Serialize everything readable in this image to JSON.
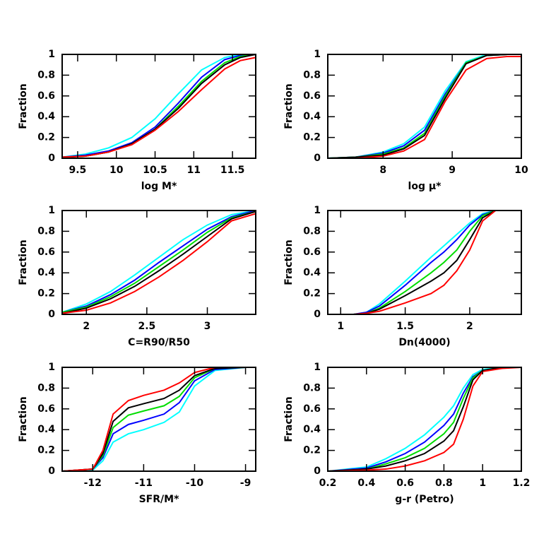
{
  "chart_data": [
    {
      "type": "line",
      "xlabel": "log M*",
      "ylabel": "Fraction",
      "xlim": [
        9.3,
        11.8
      ],
      "xticks": [
        9.5,
        10,
        10.5,
        11,
        11.5
      ],
      "ylim": [
        0,
        1
      ],
      "yticks": [
        0,
        0.2,
        0.4,
        0.6,
        0.8,
        1
      ],
      "x": [
        9.3,
        9.6,
        9.9,
        10.2,
        10.5,
        10.8,
        11.1,
        11.4,
        11.6,
        11.8
      ],
      "series": [
        {
          "color": "#00ffff",
          "values": [
            0.01,
            0.04,
            0.1,
            0.2,
            0.38,
            0.62,
            0.85,
            0.97,
            1,
            1
          ]
        },
        {
          "color": "#0000ff",
          "values": [
            0.01,
            0.03,
            0.07,
            0.15,
            0.3,
            0.53,
            0.78,
            0.95,
            0.99,
            1
          ]
        },
        {
          "color": "#00dd00",
          "values": [
            0.01,
            0.02,
            0.06,
            0.14,
            0.28,
            0.5,
            0.74,
            0.92,
            0.98,
            1
          ]
        },
        {
          "color": "#000000",
          "values": [
            0.01,
            0.02,
            0.06,
            0.14,
            0.28,
            0.48,
            0.72,
            0.9,
            0.97,
            1
          ]
        },
        {
          "color": "#ff0000",
          "values": [
            0.01,
            0.02,
            0.06,
            0.13,
            0.27,
            0.45,
            0.66,
            0.86,
            0.94,
            0.97
          ]
        }
      ]
    },
    {
      "type": "line",
      "xlabel": "log μ*",
      "ylabel": "Fraction",
      "xlim": [
        7.2,
        10
      ],
      "xticks": [
        8,
        9,
        10
      ],
      "ylim": [
        0,
        1
      ],
      "yticks": [
        0,
        0.2,
        0.4,
        0.6,
        0.8,
        1
      ],
      "x": [
        7.2,
        7.6,
        8,
        8.3,
        8.6,
        8.9,
        9.2,
        9.5,
        9.8,
        10
      ],
      "series": [
        {
          "color": "#00ffff",
          "values": [
            0,
            0.01,
            0.06,
            0.14,
            0.3,
            0.65,
            0.93,
            1,
            1,
            1
          ]
        },
        {
          "color": "#0000ff",
          "values": [
            0,
            0.01,
            0.05,
            0.12,
            0.27,
            0.62,
            0.92,
            0.99,
            1,
            1
          ]
        },
        {
          "color": "#00dd00",
          "values": [
            0,
            0.01,
            0.04,
            0.1,
            0.24,
            0.6,
            0.92,
            0.99,
            1,
            1
          ]
        },
        {
          "color": "#000000",
          "values": [
            0,
            0.01,
            0.03,
            0.09,
            0.22,
            0.58,
            0.91,
            0.99,
            1,
            1
          ]
        },
        {
          "color": "#ff0000",
          "values": [
            0,
            0,
            0.02,
            0.07,
            0.18,
            0.55,
            0.85,
            0.96,
            0.98,
            0.98
          ]
        }
      ]
    },
    {
      "type": "line",
      "xlabel": "C=R90/R50",
      "ylabel": "Fraction",
      "xlim": [
        1.8,
        3.4
      ],
      "xticks": [
        2,
        2.5,
        3
      ],
      "ylim": [
        0,
        1
      ],
      "yticks": [
        0,
        0.2,
        0.4,
        0.6,
        0.8,
        1
      ],
      "x": [
        1.8,
        2,
        2.2,
        2.4,
        2.6,
        2.8,
        3,
        3.2,
        3.4
      ],
      "series": [
        {
          "color": "#00ffff",
          "values": [
            0.02,
            0.1,
            0.22,
            0.38,
            0.55,
            0.72,
            0.86,
            0.96,
            1
          ]
        },
        {
          "color": "#0000ff",
          "values": [
            0.02,
            0.08,
            0.19,
            0.33,
            0.5,
            0.66,
            0.82,
            0.94,
            1
          ]
        },
        {
          "color": "#00dd00",
          "values": [
            0.02,
            0.07,
            0.17,
            0.3,
            0.46,
            0.62,
            0.79,
            0.93,
            0.99
          ]
        },
        {
          "color": "#000000",
          "values": [
            0.01,
            0.06,
            0.15,
            0.27,
            0.42,
            0.58,
            0.75,
            0.92,
            0.99
          ]
        },
        {
          "color": "#ff0000",
          "values": [
            0.01,
            0.04,
            0.11,
            0.22,
            0.36,
            0.52,
            0.7,
            0.9,
            0.97
          ]
        }
      ]
    },
    {
      "type": "line",
      "xlabel": "Dn(4000)",
      "ylabel": "Fraction",
      "xlim": [
        0.9,
        2.4
      ],
      "xticks": [
        1,
        1.5,
        2
      ],
      "ylim": [
        0,
        1
      ],
      "yticks": [
        0,
        0.2,
        0.4,
        0.6,
        0.8,
        1
      ],
      "x": [
        0.9,
        1.1,
        1.2,
        1.3,
        1.5,
        1.7,
        1.8,
        1.9,
        2,
        2.1,
        2.2,
        2.4
      ],
      "series": [
        {
          "color": "#00ffff",
          "values": [
            0,
            0,
            0.02,
            0.1,
            0.32,
            0.55,
            0.66,
            0.77,
            0.88,
            0.97,
            1,
            1
          ]
        },
        {
          "color": "#0000ff",
          "values": [
            0,
            0,
            0.02,
            0.08,
            0.28,
            0.5,
            0.6,
            0.72,
            0.86,
            0.96,
            1,
            1
          ]
        },
        {
          "color": "#00dd00",
          "values": [
            0,
            0,
            0.01,
            0.06,
            0.22,
            0.4,
            0.5,
            0.62,
            0.8,
            0.95,
            1,
            1
          ]
        },
        {
          "color": "#000000",
          "values": [
            0,
            0,
            0.01,
            0.05,
            0.18,
            0.32,
            0.4,
            0.52,
            0.72,
            0.93,
            1,
            1
          ]
        },
        {
          "color": "#ff0000",
          "values": [
            0,
            0,
            0.01,
            0.03,
            0.11,
            0.2,
            0.28,
            0.42,
            0.62,
            0.9,
            1,
            1
          ]
        }
      ]
    },
    {
      "type": "line",
      "xlabel": "SFR/M*",
      "ylabel": "Fraction",
      "xlim": [
        -12.6,
        -8.8
      ],
      "xticks": [
        -12,
        -11,
        -10,
        -9
      ],
      "ylim": [
        0,
        1
      ],
      "yticks": [
        0,
        0.2,
        0.4,
        0.6,
        0.8,
        1
      ],
      "x": [
        -12.6,
        -12,
        -11.8,
        -11.6,
        -11.3,
        -11,
        -10.6,
        -10.3,
        -10,
        -9.6,
        -9,
        -8.8
      ],
      "series": [
        {
          "color": "#00ffff",
          "values": [
            0,
            0.01,
            0.1,
            0.28,
            0.36,
            0.4,
            0.47,
            0.57,
            0.82,
            0.97,
            1,
            1
          ]
        },
        {
          "color": "#0000ff",
          "values": [
            0,
            0.02,
            0.13,
            0.36,
            0.45,
            0.49,
            0.55,
            0.66,
            0.87,
            0.98,
            1,
            1
          ]
        },
        {
          "color": "#00dd00",
          "values": [
            0,
            0.02,
            0.15,
            0.42,
            0.54,
            0.58,
            0.63,
            0.72,
            0.9,
            0.99,
            1,
            1
          ]
        },
        {
          "color": "#000000",
          "values": [
            0,
            0.02,
            0.17,
            0.48,
            0.61,
            0.65,
            0.7,
            0.78,
            0.92,
            0.99,
            1,
            1
          ]
        },
        {
          "color": "#ff0000",
          "values": [
            0,
            0.02,
            0.2,
            0.55,
            0.68,
            0.73,
            0.78,
            0.85,
            0.95,
            1,
            1,
            1
          ]
        }
      ]
    },
    {
      "type": "line",
      "xlabel": "g-r (Petro)",
      "ylabel": "Fraction",
      "xlim": [
        0.2,
        1.2
      ],
      "xticks": [
        0.2,
        0.4,
        0.6,
        0.8,
        1,
        1.2
      ],
      "ylim": [
        0,
        1
      ],
      "yticks": [
        0,
        0.2,
        0.4,
        0.6,
        0.8,
        1
      ],
      "x": [
        0.2,
        0.4,
        0.5,
        0.6,
        0.7,
        0.8,
        0.85,
        0.9,
        0.95,
        1,
        1.1,
        1.2
      ],
      "series": [
        {
          "color": "#00ffff",
          "values": [
            0,
            0.04,
            0.12,
            0.22,
            0.35,
            0.52,
            0.63,
            0.8,
            0.93,
            0.98,
            1,
            1
          ]
        },
        {
          "color": "#0000ff",
          "values": [
            0,
            0.03,
            0.09,
            0.17,
            0.28,
            0.44,
            0.55,
            0.75,
            0.91,
            0.97,
            1,
            1
          ]
        },
        {
          "color": "#00dd00",
          "values": [
            0,
            0.02,
            0.07,
            0.13,
            0.22,
            0.36,
            0.47,
            0.7,
            0.9,
            0.97,
            1,
            1
          ]
        },
        {
          "color": "#000000",
          "values": [
            0,
            0.02,
            0.05,
            0.1,
            0.17,
            0.29,
            0.39,
            0.62,
            0.88,
            0.97,
            1,
            1
          ]
        },
        {
          "color": "#ff0000",
          "values": [
            0,
            0.01,
            0.02,
            0.05,
            0.1,
            0.18,
            0.26,
            0.5,
            0.82,
            0.96,
            0.99,
            1
          ]
        }
      ]
    }
  ]
}
